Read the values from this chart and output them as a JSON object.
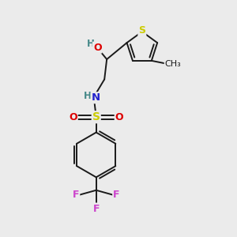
{
  "background_color": "#ebebeb",
  "figsize": [
    3.0,
    3.0
  ],
  "dpi": 100,
  "line_color": "#1a1a1a",
  "line_width": 1.4,
  "colors": {
    "S": "#cccc00",
    "O": "#dd0000",
    "N": "#2222cc",
    "H": "#448888",
    "F": "#cc44cc",
    "C": "#1a1a1a",
    "CH3": "#1a1a1a"
  }
}
